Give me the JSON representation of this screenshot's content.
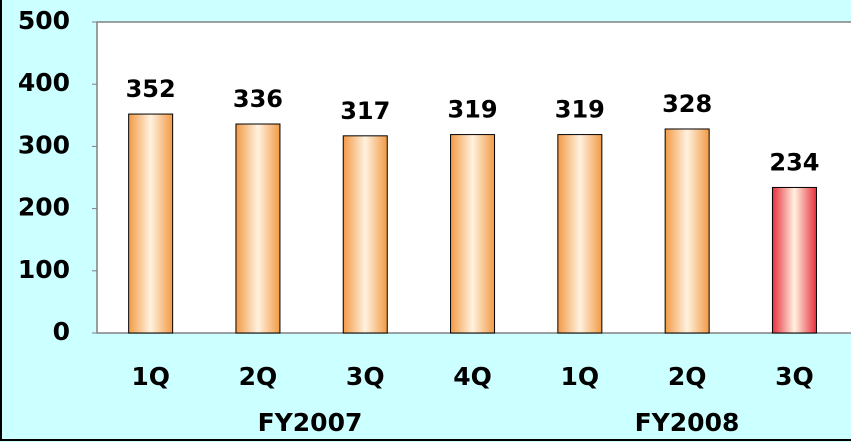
{
  "chart_data": {
    "type": "bar",
    "categories": [
      "1Q",
      "2Q",
      "3Q",
      "4Q",
      "1Q",
      "2Q",
      "3Q"
    ],
    "values": [
      352,
      336,
      317,
      319,
      319,
      328,
      234
    ],
    "colors": [
      "#f29a45",
      "#f29a45",
      "#f29a45",
      "#f29a45",
      "#f29a45",
      "#f29a45",
      "#e8303e"
    ],
    "group_labels": [
      "FY2007",
      "FY2008"
    ],
    "ylim": [
      0,
      500
    ],
    "yticks": [
      0,
      100,
      200,
      300,
      400,
      500
    ],
    "grid": false
  }
}
